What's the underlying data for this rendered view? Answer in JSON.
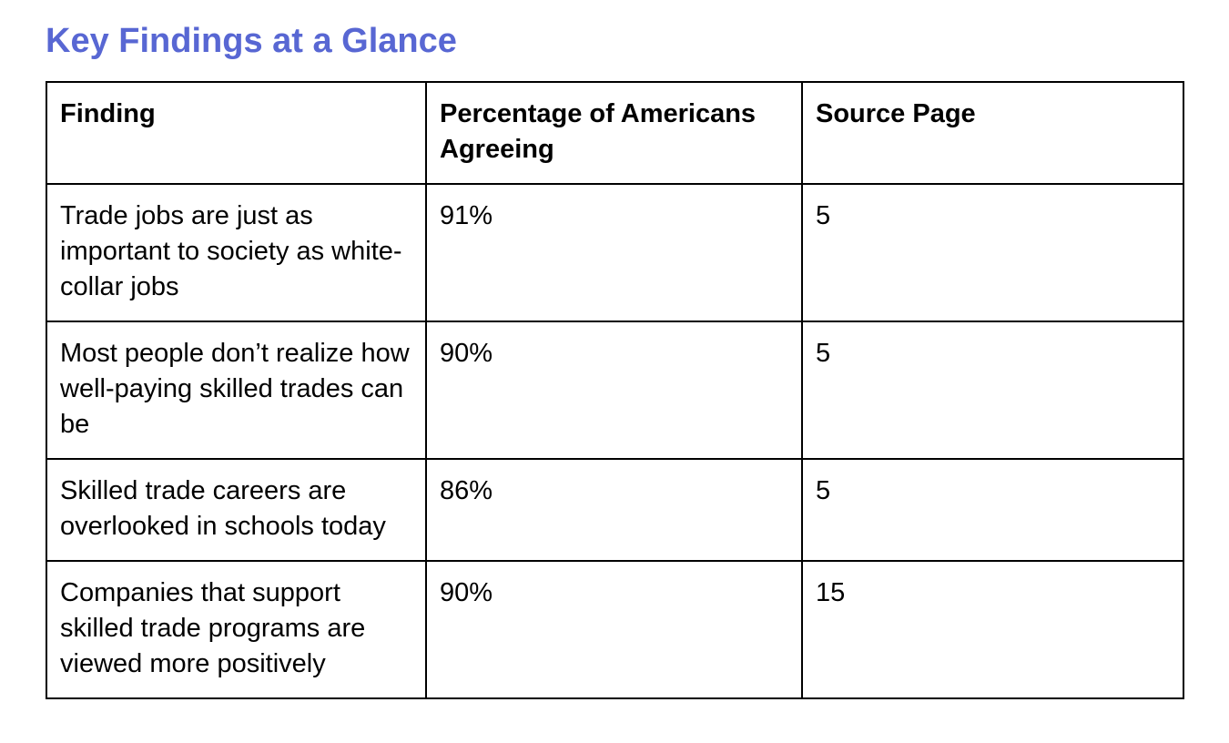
{
  "document": {
    "title": "Key Findings at a Glance"
  },
  "colors": {
    "title_accent": "#5867D3",
    "table_border": "#000000",
    "text": "#000000",
    "background": "#FFFFFF"
  },
  "table": {
    "columns": [
      "Finding",
      "Percentage of Americans Agreeing",
      "Source Page"
    ],
    "rows": [
      {
        "finding": "Trade jobs are just as important to society as white-collar jobs",
        "percentage": "91%",
        "source_page": "5"
      },
      {
        "finding": "Most people don’t realize how well-paying skilled trades can be",
        "percentage": "90%",
        "source_page": "5"
      },
      {
        "finding": "Skilled trade careers are overlooked in schools today",
        "percentage": "86%",
        "source_page": "5"
      },
      {
        "finding": "Companies that support skilled trade programs are viewed more positively",
        "percentage": "90%",
        "source_page": "15"
      }
    ]
  }
}
